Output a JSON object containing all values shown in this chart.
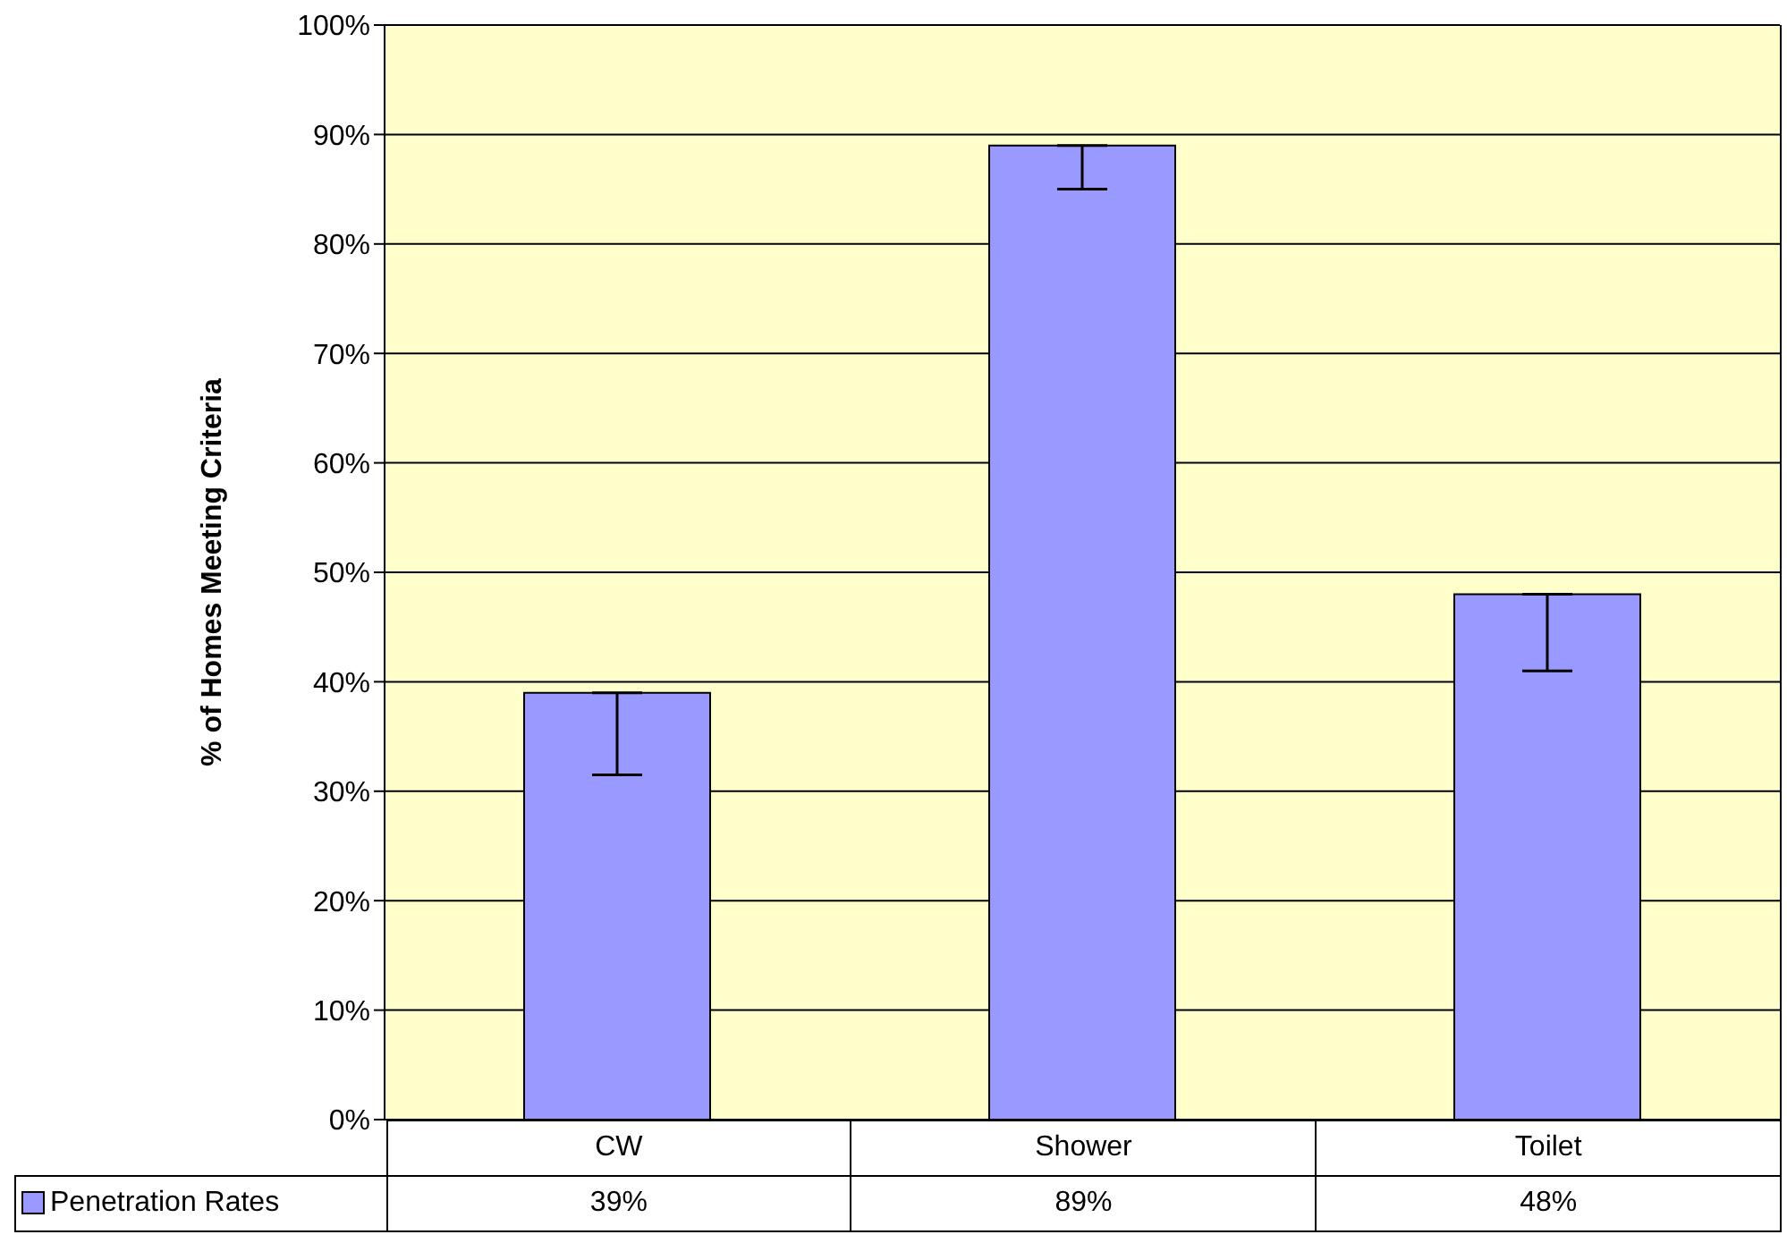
{
  "chart_data": {
    "type": "bar",
    "ylabel": "% of Homes Meeting Criteria",
    "categories": [
      "CW",
      "Shower",
      "Toilet"
    ],
    "series": [
      {
        "name": "Penetration Rates",
        "color": "#9999ff",
        "values": [
          39,
          89,
          48
        ],
        "errors": [
          [
            31.5,
            39
          ],
          [
            85,
            89
          ],
          [
            41,
            48
          ]
        ]
      }
    ],
    "value_labels": [
      "39%",
      "89%",
      "48%"
    ],
    "ylim": [
      0,
      100
    ],
    "yticks": [
      {
        "value": 0,
        "label": "0%"
      },
      {
        "value": 10,
        "label": "10%"
      },
      {
        "value": 20,
        "label": "20%"
      },
      {
        "value": 30,
        "label": "30%"
      },
      {
        "value": 40,
        "label": "40%"
      },
      {
        "value": 50,
        "label": "50%"
      },
      {
        "value": 60,
        "label": "60%"
      },
      {
        "value": 70,
        "label": "70%"
      },
      {
        "value": 80,
        "label": "80%"
      },
      {
        "value": 90,
        "label": "90%"
      },
      {
        "value": 100,
        "label": "100%"
      }
    ],
    "grid": "y",
    "legend": "bottom"
  }
}
